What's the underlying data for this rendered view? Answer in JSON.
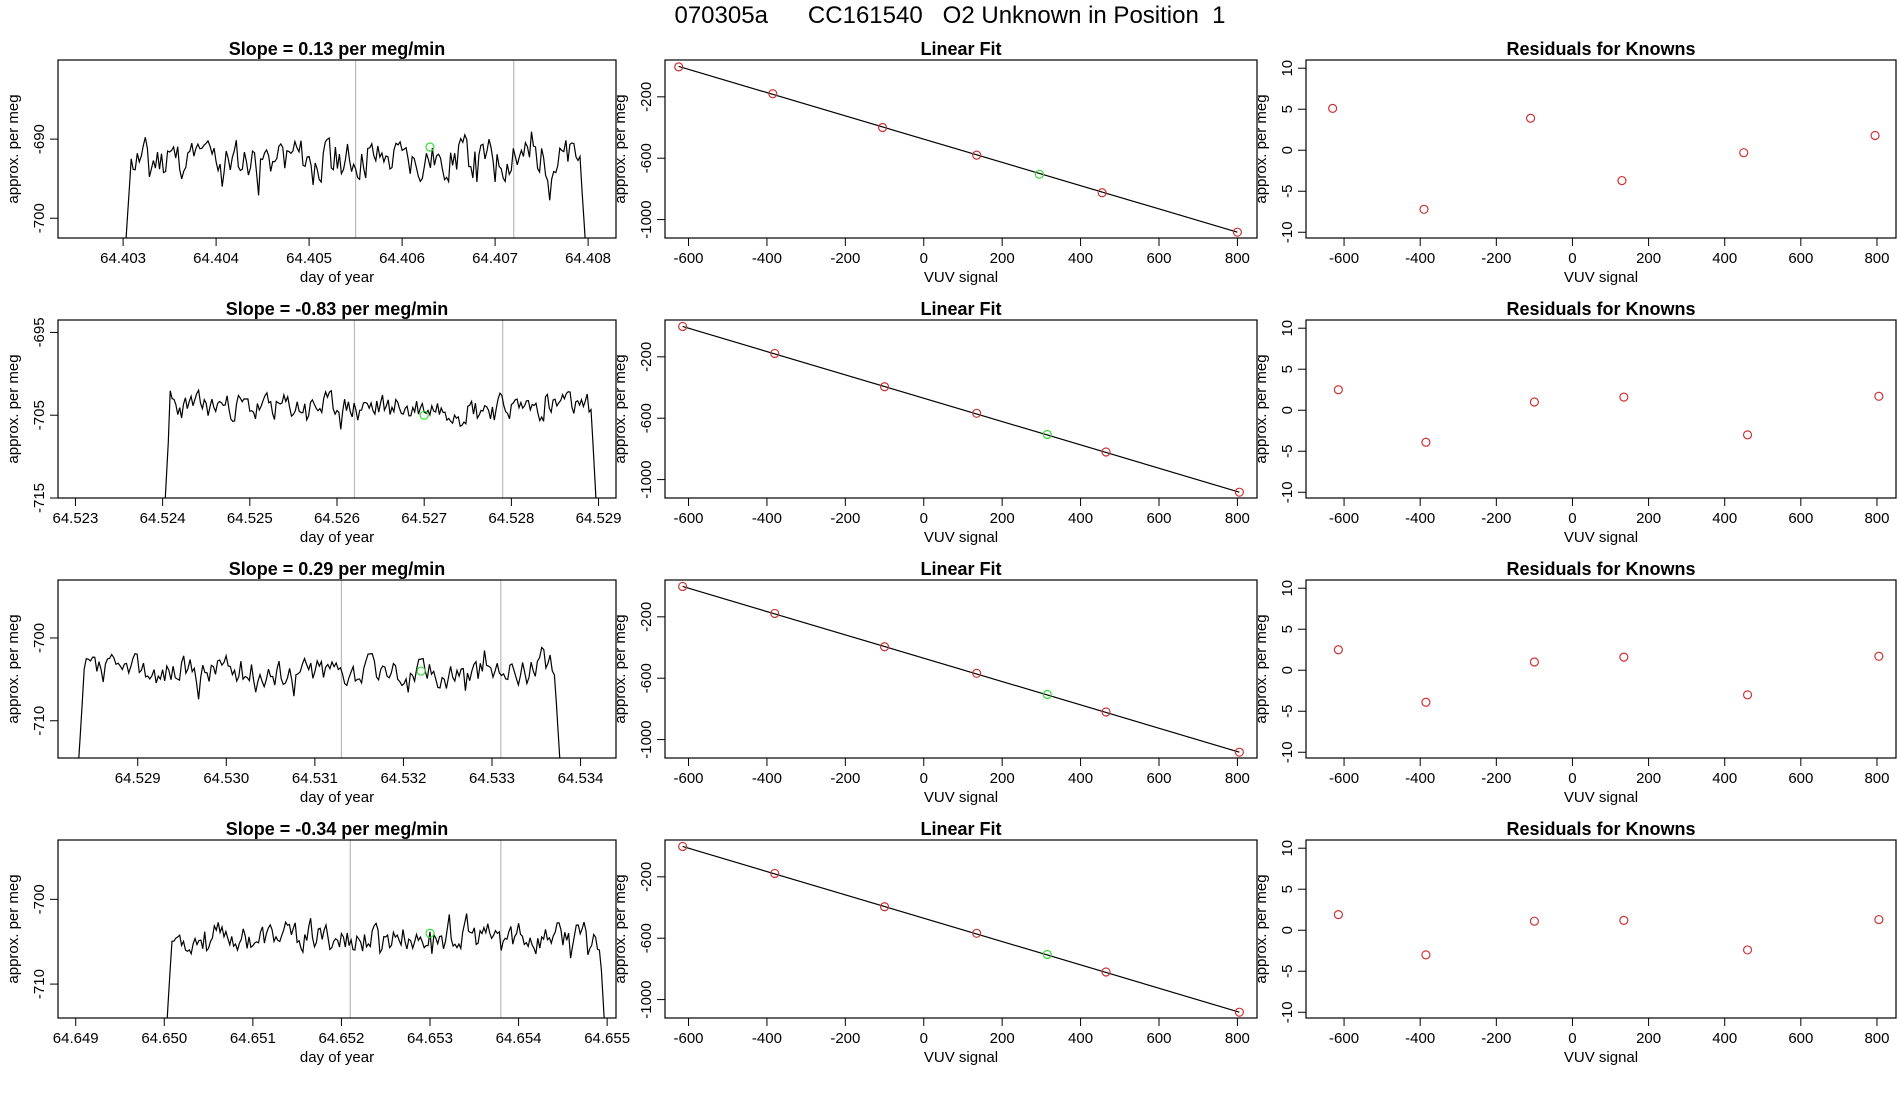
{
  "title": "070305a      CC161540   O2 Unknown in Position  1",
  "colors": {
    "trace": "#000000",
    "known": "#cd3333",
    "unknown": "#33dd33",
    "guide": "#bbbbbb"
  },
  "chart_data": [
    {
      "type": "line",
      "row": 0,
      "panel": "timeseries",
      "title": "Slope =  0.13  per meg/min",
      "xlabel": "day of year",
      "ylabel": "approx. per meg",
      "xlim": [
        64.4023,
        64.4083
      ],
      "ylim": [
        -702.5,
        -680.0
      ],
      "xticks": [
        64.403,
        64.404,
        64.405,
        64.406,
        64.407,
        64.408
      ],
      "xtick_labels": [
        "64.403",
        "64.404",
        "64.405",
        "64.406",
        "64.407",
        "64.408"
      ],
      "yticks": [
        -700,
        -690
      ],
      "ytick_labels": [
        "-700",
        "-690"
      ],
      "t_start": 64.403,
      "t_end": 64.408,
      "baseline": -692.5,
      "noise": 4.0,
      "seed": 11,
      "guides": [
        64.4055,
        64.4072
      ],
      "unknown_point": [
        64.4063,
        -691.0
      ]
    },
    {
      "type": "line",
      "row": 1,
      "panel": "timeseries",
      "title": "Slope =  -0.83  per meg/min",
      "xlabel": "day of year",
      "ylabel": "approx. per meg",
      "xlim": [
        64.5228,
        64.5292
      ],
      "ylim": [
        -715.0,
        -693.5
      ],
      "xticks": [
        64.523,
        64.524,
        64.525,
        64.526,
        64.527,
        64.528,
        64.529
      ],
      "xtick_labels": [
        "64.523",
        "64.524",
        "64.525",
        "64.526",
        "64.527",
        "64.528",
        "64.529"
      ],
      "yticks": [
        -715,
        -705,
        -695
      ],
      "ytick_labels": [
        "-715",
        "-705",
        "-695"
      ],
      "t_start": 64.524,
      "t_end": 64.529,
      "baseline": -704.0,
      "noise": 2.5,
      "seed": 23,
      "guides": [
        64.5262,
        64.5279
      ],
      "unknown_point": [
        64.527,
        -705.0
      ]
    },
    {
      "type": "line",
      "row": 2,
      "panel": "timeseries",
      "title": "Slope =  0.29  per meg/min",
      "xlabel": "day of year",
      "ylabel": "approx. per meg",
      "xlim": [
        64.5281,
        64.5344
      ],
      "ylim": [
        -714.5,
        -693.0
      ],
      "xticks": [
        64.529,
        64.53,
        64.531,
        64.532,
        64.533,
        64.534
      ],
      "xtick_labels": [
        "64.529",
        "64.530",
        "64.531",
        "64.532",
        "64.533",
        "64.534"
      ],
      "yticks": [
        -710,
        -700
      ],
      "ytick_labels": [
        "-710",
        "-700"
      ],
      "t_start": 64.5283,
      "t_end": 64.5338,
      "baseline": -704.0,
      "noise": 2.8,
      "seed": 37,
      "guides": [
        64.5313,
        64.5331
      ],
      "unknown_point": [
        64.5322,
        -704.0
      ]
    },
    {
      "type": "line",
      "row": 3,
      "panel": "timeseries",
      "title": "Slope =  -0.34  per meg/min",
      "xlabel": "day of year",
      "ylabel": "approx. per meg",
      "xlim": [
        64.6488,
        64.6551
      ],
      "ylim": [
        -714.0,
        -693.0
      ],
      "xticks": [
        64.649,
        64.65,
        64.651,
        64.652,
        64.653,
        64.654,
        64.655
      ],
      "xtick_labels": [
        "64.649",
        "64.650",
        "64.651",
        "64.652",
        "64.653",
        "64.654",
        "64.655"
      ],
      "yticks": [
        -710,
        -700
      ],
      "ytick_labels": [
        "-710",
        "-700"
      ],
      "t_start": 64.65,
      "t_end": 64.655,
      "baseline": -704.5,
      "noise": 2.6,
      "seed": 53,
      "guides": [
        64.6521,
        64.6538
      ],
      "unknown_point": [
        64.653,
        -704.0
      ]
    },
    {
      "type": "scatter",
      "row": 0,
      "panel": "fit",
      "title": "Linear Fit",
      "xlabel": "VUV signal",
      "ylabel": "approx. per meg",
      "xlim": [
        -660,
        850
      ],
      "ylim": [
        -1120,
        40
      ],
      "xticks": [
        -600,
        -400,
        -200,
        0,
        200,
        400,
        600,
        800
      ],
      "xtick_labels": [
        "-600",
        "-400",
        "-200",
        "0",
        "200",
        "400",
        "600",
        "800"
      ],
      "yticks": [
        -1000,
        -600,
        -200
      ],
      "ytick_labels": [
        "-1000",
        "-600",
        "-200"
      ],
      "line": [
        [
          -625,
          -2
        ],
        [
          800,
          -1082
        ]
      ],
      "knowns": [
        [
          -625,
          -5
        ],
        [
          -385,
          -180
        ],
        [
          -105,
          -400
        ],
        [
          135,
          -580
        ],
        [
          455,
          -825
        ],
        [
          800,
          -1082
        ]
      ],
      "unknown": [
        [
          295,
          -705
        ]
      ]
    },
    {
      "type": "scatter",
      "row": 1,
      "panel": "fit",
      "title": "Linear Fit",
      "xlabel": "VUV signal",
      "ylabel": "approx. per meg",
      "xlim": [
        -660,
        850
      ],
      "ylim": [
        -1120,
        40
      ],
      "xticks": [
        -600,
        -400,
        -200,
        0,
        200,
        400,
        600,
        800
      ],
      "xtick_labels": [
        "-600",
        "-400",
        "-200",
        "0",
        "200",
        "400",
        "600",
        "800"
      ],
      "yticks": [
        -1000,
        -600,
        -200
      ],
      "ytick_labels": [
        "-1000",
        "-600",
        "-200"
      ],
      "line": [
        [
          -615,
          -2
        ],
        [
          805,
          -1082
        ]
      ],
      "knowns": [
        [
          -615,
          -2
        ],
        [
          -380,
          -178
        ],
        [
          -100,
          -395
        ],
        [
          135,
          -568
        ],
        [
          465,
          -820
        ],
        [
          805,
          -1082
        ]
      ],
      "unknown": [
        [
          315,
          -706
        ]
      ]
    },
    {
      "type": "scatter",
      "row": 2,
      "panel": "fit",
      "title": "Linear Fit",
      "xlabel": "VUV signal",
      "ylabel": "approx. per meg",
      "xlim": [
        -660,
        850
      ],
      "ylim": [
        -1120,
        40
      ],
      "xticks": [
        -600,
        -400,
        -200,
        0,
        200,
        400,
        600,
        800
      ],
      "xtick_labels": [
        "-600",
        "-400",
        "-200",
        "0",
        "200",
        "400",
        "600",
        "800"
      ],
      "yticks": [
        -1000,
        -600,
        -200
      ],
      "ytick_labels": [
        "-1000",
        "-600",
        "-200"
      ],
      "line": [
        [
          -615,
          -2
        ],
        [
          805,
          -1082
        ]
      ],
      "knowns": [
        [
          -615,
          -2
        ],
        [
          -380,
          -178
        ],
        [
          -100,
          -395
        ],
        [
          135,
          -568
        ],
        [
          465,
          -820
        ],
        [
          805,
          -1082
        ]
      ],
      "unknown": [
        [
          315,
          -706
        ]
      ]
    },
    {
      "type": "scatter",
      "row": 3,
      "panel": "fit",
      "title": "Linear Fit",
      "xlabel": "VUV signal",
      "ylabel": "approx. per meg",
      "xlim": [
        -660,
        850
      ],
      "ylim": [
        -1120,
        40
      ],
      "xticks": [
        -600,
        -400,
        -200,
        0,
        200,
        400,
        600,
        800
      ],
      "xtick_labels": [
        "-600",
        "-400",
        "-200",
        "0",
        "200",
        "400",
        "600",
        "800"
      ],
      "yticks": [
        -1000,
        -600,
        -200
      ],
      "ytick_labels": [
        "-1000",
        "-600",
        "-200"
      ],
      "line": [
        [
          -615,
          -2
        ],
        [
          805,
          -1082
        ]
      ],
      "knowns": [
        [
          -615,
          -2
        ],
        [
          -380,
          -178
        ],
        [
          -100,
          -395
        ],
        [
          135,
          -568
        ],
        [
          465,
          -820
        ],
        [
          805,
          -1082
        ]
      ],
      "unknown": [
        [
          315,
          -706
        ]
      ]
    },
    {
      "type": "scatter",
      "row": 0,
      "panel": "residuals",
      "title": "Residuals for Knowns",
      "xlabel": "VUV signal",
      "ylabel": "approx. per meg",
      "xlim": [
        -700,
        850
      ],
      "ylim": [
        -10.7,
        11.0
      ],
      "xticks": [
        -600,
        -400,
        -200,
        0,
        200,
        400,
        600,
        800
      ],
      "xtick_labels": [
        "-600",
        "-400",
        "-200",
        "0",
        "200",
        "400",
        "600",
        "800"
      ],
      "yticks": [
        -10,
        -5,
        0,
        5,
        10
      ],
      "ytick_labels": [
        "-10",
        "-5",
        "0",
        "5",
        "10"
      ],
      "points": [
        [
          -630,
          5.1
        ],
        [
          -390,
          -7.2
        ],
        [
          -110,
          3.9
        ],
        [
          130,
          -3.7
        ],
        [
          450,
          -0.3
        ],
        [
          795,
          1.8
        ]
      ]
    },
    {
      "type": "scatter",
      "row": 1,
      "panel": "residuals",
      "title": "Residuals for Knowns",
      "xlabel": "VUV signal",
      "ylabel": "approx. per meg",
      "xlim": [
        -700,
        850
      ],
      "ylim": [
        -10.7,
        11.0
      ],
      "xticks": [
        -600,
        -400,
        -200,
        0,
        200,
        400,
        600,
        800
      ],
      "xtick_labels": [
        "-600",
        "-400",
        "-200",
        "0",
        "200",
        "400",
        "600",
        "800"
      ],
      "yticks": [
        -10,
        -5,
        0,
        5,
        10
      ],
      "ytick_labels": [
        "-10",
        "-5",
        "0",
        "5",
        "10"
      ],
      "points": [
        [
          -615,
          2.5
        ],
        [
          -385,
          -3.9
        ],
        [
          -100,
          1.0
        ],
        [
          135,
          1.6
        ],
        [
          460,
          -3.0
        ],
        [
          805,
          1.7
        ]
      ]
    },
    {
      "type": "scatter",
      "row": 2,
      "panel": "residuals",
      "title": "Residuals for Knowns",
      "xlabel": "VUV signal",
      "ylabel": "approx. per meg",
      "xlim": [
        -700,
        850
      ],
      "ylim": [
        -10.7,
        11.0
      ],
      "xticks": [
        -600,
        -400,
        -200,
        0,
        200,
        400,
        600,
        800
      ],
      "xtick_labels": [
        "-600",
        "-400",
        "-200",
        "0",
        "200",
        "400",
        "600",
        "800"
      ],
      "yticks": [
        -10,
        -5,
        0,
        5,
        10
      ],
      "ytick_labels": [
        "-10",
        "-5",
        "0",
        "5",
        "10"
      ],
      "points": [
        [
          -615,
          2.5
        ],
        [
          -385,
          -3.9
        ],
        [
          -100,
          1.0
        ],
        [
          135,
          1.6
        ],
        [
          460,
          -3.0
        ],
        [
          805,
          1.7
        ]
      ]
    },
    {
      "type": "scatter",
      "row": 3,
      "panel": "residuals",
      "title": "Residuals for Knowns",
      "xlabel": "VUV signal",
      "ylabel": "approx. per meg",
      "xlim": [
        -700,
        850
      ],
      "ylim": [
        -10.7,
        11.0
      ],
      "xticks": [
        -600,
        -400,
        -200,
        0,
        200,
        400,
        600,
        800
      ],
      "xtick_labels": [
        "-600",
        "-400",
        "-200",
        "0",
        "200",
        "400",
        "600",
        "800"
      ],
      "yticks": [
        -10,
        -5,
        0,
        5,
        10
      ],
      "ytick_labels": [
        "-10",
        "-5",
        "0",
        "5",
        "10"
      ],
      "points": [
        [
          -615,
          1.9
        ],
        [
          -385,
          -3.0
        ],
        [
          -100,
          1.1
        ],
        [
          135,
          1.2
        ],
        [
          460,
          -2.4
        ],
        [
          805,
          1.3
        ]
      ]
    }
  ]
}
